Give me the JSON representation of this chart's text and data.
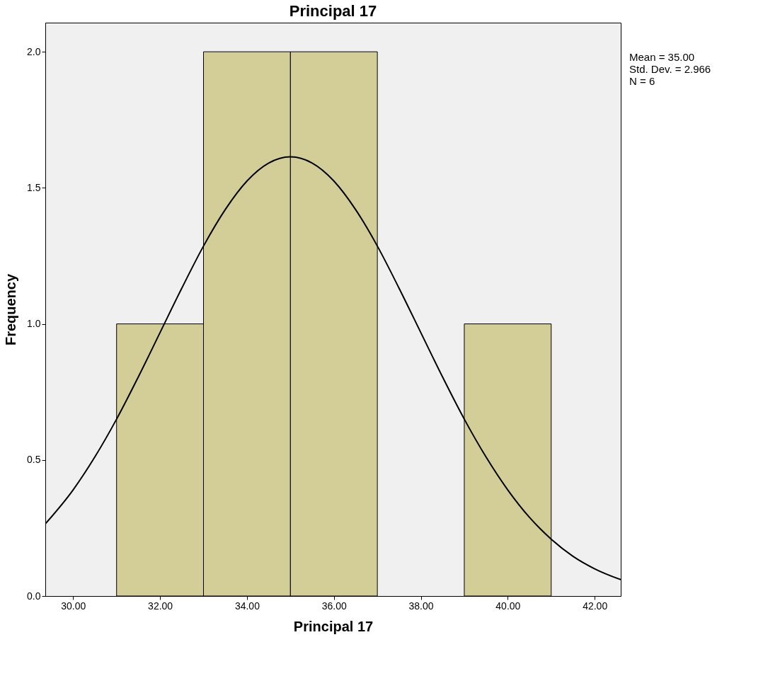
{
  "chart_data": {
    "type": "histogram",
    "title": "Principal 17",
    "xlabel": "Principal 17",
    "ylabel": "Frequency",
    "bins": [
      31,
      33,
      35,
      37,
      39,
      41
    ],
    "values": [
      1,
      2,
      2,
      0,
      1
    ],
    "color": "#d3ce97",
    "series": [
      {
        "type": "line",
        "color": "#000000",
        "x": [
          29.36,
          30,
          30.5,
          31,
          31.5,
          32,
          32.5,
          33,
          33.5,
          34,
          34.5,
          35,
          35.5,
          36,
          36.5,
          37,
          37.5,
          38,
          38.5,
          39,
          39.5,
          40,
          40.5,
          41,
          41.5,
          42,
          42.6
        ],
        "values": [
          0.265,
          0.39,
          0.511,
          0.65,
          0.805,
          0.968,
          1.131,
          1.286,
          1.42,
          1.525,
          1.591,
          1.614,
          1.591,
          1.525,
          1.42,
          1.286,
          1.131,
          0.968,
          0.805,
          0.65,
          0.511,
          0.39,
          0.289,
          0.209,
          0.146,
          0.1,
          0.06
        ]
      }
    ],
    "xlim": [
      29.36,
      42.6
    ],
    "ylim": [
      0,
      2.107
    ],
    "xticks": [
      {
        "value": 30,
        "label": "30.00"
      },
      {
        "value": 32,
        "label": "32.00"
      },
      {
        "value": 34,
        "label": "34.00"
      },
      {
        "value": 36,
        "label": "36.00"
      },
      {
        "value": 38,
        "label": "38.00"
      },
      {
        "value": 40,
        "label": "40.00"
      },
      {
        "value": 42,
        "label": "42.00"
      }
    ],
    "yticks": [
      {
        "value": 0,
        "label": "0.0"
      },
      {
        "value": 0.5,
        "label": "0.5"
      },
      {
        "value": 1,
        "label": "1.0"
      },
      {
        "value": 1.5,
        "label": "1.5"
      },
      {
        "value": 2,
        "label": "2.0"
      }
    ],
    "annotations": [
      "Mean = 35.00",
      "Std. Dev. = 2.966",
      "N = 6"
    ],
    "grid": false
  }
}
